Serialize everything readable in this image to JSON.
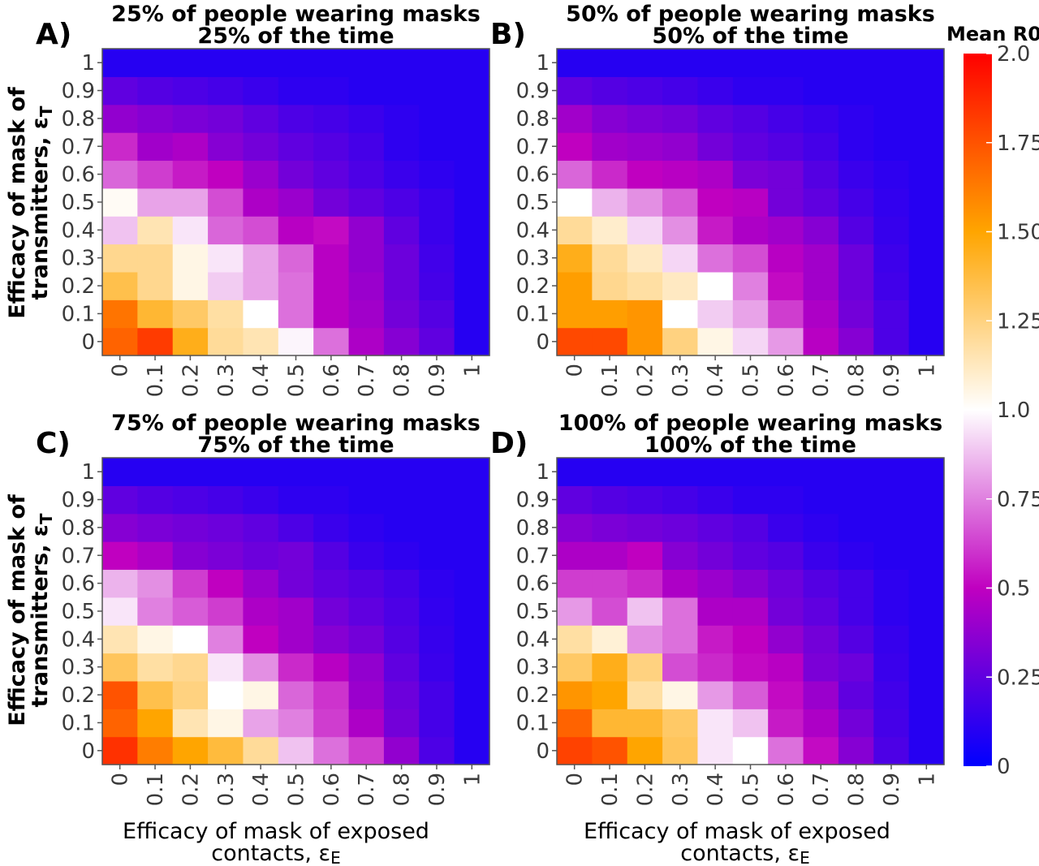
{
  "chart_data": {
    "type": "heatmap",
    "x_ticks": [
      "0",
      "0.1",
      "0.2",
      "0.3",
      "0.4",
      "0.5",
      "0.6",
      "0.7",
      "0.8",
      "0.9",
      "1"
    ],
    "y_ticks": [
      "0",
      "0.1",
      "0.2",
      "0.3",
      "0.4",
      "0.5",
      "0.6",
      "0.7",
      "0.8",
      "0.9",
      "1"
    ],
    "xlabel_line1": "Efficacy of mask of exposed",
    "xlabel_line2": "contacts, ε",
    "xlabel_sub": "E",
    "ylabel_line1": "Efficacy of mask of",
    "ylabel_line2": "transmitters, ε",
    "ylabel_sub": "T",
    "colorbar": {
      "title": "Mean R0",
      "min": 0,
      "max": 2.0,
      "ticks": [
        "0",
        "0.25",
        "0.5",
        "0.75",
        "1.0",
        "1.25",
        "1.50",
        "1.75",
        "2.0"
      ],
      "tick_values": [
        0,
        0.25,
        0.5,
        0.75,
        1.0,
        1.25,
        1.5,
        1.75,
        2.0
      ],
      "colors": [
        "#0000ff",
        "#c000c0",
        "#ffffff",
        "#ffa500",
        "#ff0000"
      ]
    },
    "panels": [
      {
        "letter": "A)",
        "title_line1": "25% of people wearing masks",
        "title_line2": "25% of the time",
        "rows_note": "values[i][j]: i = y index (0 = epsilon_T 0), j = x index",
        "values": [
          [
            1.7,
            1.82,
            1.45,
            1.2,
            1.15,
            0.98,
            0.72,
            0.45,
            0.35,
            0.25,
            0.1
          ],
          [
            1.65,
            1.4,
            1.3,
            1.18,
            1.0,
            0.72,
            0.48,
            0.42,
            0.3,
            0.22,
            0.1
          ],
          [
            1.35,
            1.22,
            1.05,
            0.9,
            0.82,
            0.72,
            0.48,
            0.4,
            0.28,
            0.18,
            0.1
          ],
          [
            1.22,
            1.22,
            1.05,
            0.95,
            0.82,
            0.7,
            0.48,
            0.38,
            0.28,
            0.17,
            0.1
          ],
          [
            0.88,
            1.15,
            0.95,
            0.7,
            0.65,
            0.48,
            0.52,
            0.38,
            0.25,
            0.15,
            0.1
          ],
          [
            1.02,
            0.82,
            0.82,
            0.65,
            0.45,
            0.4,
            0.3,
            0.25,
            0.2,
            0.15,
            0.1
          ],
          [
            0.7,
            0.62,
            0.55,
            0.5,
            0.4,
            0.3,
            0.25,
            0.2,
            0.15,
            0.12,
            0.1
          ],
          [
            0.58,
            0.42,
            0.45,
            0.35,
            0.3,
            0.25,
            0.22,
            0.18,
            0.12,
            0.1,
            0.1
          ],
          [
            0.38,
            0.35,
            0.32,
            0.3,
            0.25,
            0.2,
            0.18,
            0.15,
            0.12,
            0.1,
            0.1
          ],
          [
            0.25,
            0.22,
            0.2,
            0.18,
            0.15,
            0.12,
            0.12,
            0.1,
            0.1,
            0.1,
            0.1
          ],
          [
            0.1,
            0.1,
            0.1,
            0.1,
            0.1,
            0.1,
            0.1,
            0.1,
            0.1,
            0.1,
            0.1
          ]
        ]
      },
      {
        "letter": "B)",
        "title_line1": "50% of people wearing masks",
        "title_line2": "50% of the time",
        "values": [
          [
            1.78,
            1.78,
            1.55,
            1.25,
            1.05,
            0.92,
            0.8,
            0.48,
            0.35,
            0.2,
            0.1
          ],
          [
            1.52,
            1.52,
            1.55,
            1.0,
            0.9,
            0.82,
            0.62,
            0.45,
            0.3,
            0.2,
            0.1
          ],
          [
            1.52,
            1.22,
            1.18,
            1.12,
            1.0,
            0.75,
            0.52,
            0.42,
            0.28,
            0.17,
            0.1
          ],
          [
            1.45,
            1.2,
            1.12,
            0.92,
            0.72,
            0.65,
            0.48,
            0.42,
            0.28,
            0.16,
            0.1
          ],
          [
            1.2,
            1.1,
            0.92,
            0.78,
            0.55,
            0.45,
            0.42,
            0.35,
            0.22,
            0.14,
            0.1
          ],
          [
            1.0,
            0.85,
            0.78,
            0.68,
            0.5,
            0.48,
            0.3,
            0.25,
            0.18,
            0.13,
            0.1
          ],
          [
            0.7,
            0.58,
            0.5,
            0.48,
            0.45,
            0.32,
            0.3,
            0.22,
            0.15,
            0.12,
            0.1
          ],
          [
            0.5,
            0.42,
            0.4,
            0.38,
            0.3,
            0.25,
            0.22,
            0.18,
            0.12,
            0.1,
            0.1
          ],
          [
            0.42,
            0.35,
            0.32,
            0.3,
            0.25,
            0.22,
            0.18,
            0.15,
            0.12,
            0.1,
            0.1
          ],
          [
            0.25,
            0.22,
            0.2,
            0.18,
            0.15,
            0.12,
            0.12,
            0.1,
            0.1,
            0.1,
            0.1
          ],
          [
            0.1,
            0.1,
            0.1,
            0.1,
            0.1,
            0.1,
            0.1,
            0.1,
            0.1,
            0.1,
            0.1
          ]
        ]
      },
      {
        "letter": "C)",
        "title_line1": "75% of people wearing masks",
        "title_line2": "75% of the time",
        "values": [
          [
            1.85,
            1.62,
            1.5,
            1.38,
            1.2,
            0.88,
            0.72,
            0.62,
            0.38,
            0.2,
            0.1
          ],
          [
            1.7,
            1.5,
            1.15,
            1.05,
            0.82,
            0.75,
            0.62,
            0.45,
            0.3,
            0.18,
            0.1
          ],
          [
            1.75,
            1.35,
            1.25,
            1.0,
            1.05,
            0.7,
            0.6,
            0.4,
            0.28,
            0.18,
            0.1
          ],
          [
            1.32,
            1.18,
            1.22,
            0.95,
            0.78,
            0.58,
            0.48,
            0.38,
            0.25,
            0.15,
            0.1
          ],
          [
            1.15,
            1.05,
            1.0,
            0.75,
            0.5,
            0.42,
            0.35,
            0.3,
            0.22,
            0.14,
            0.1
          ],
          [
            0.95,
            0.75,
            0.68,
            0.62,
            0.45,
            0.42,
            0.3,
            0.25,
            0.2,
            0.13,
            0.1
          ],
          [
            0.85,
            0.78,
            0.62,
            0.5,
            0.4,
            0.3,
            0.25,
            0.22,
            0.18,
            0.12,
            0.1
          ],
          [
            0.5,
            0.45,
            0.35,
            0.32,
            0.28,
            0.3,
            0.22,
            0.15,
            0.12,
            0.1,
            0.1
          ],
          [
            0.35,
            0.32,
            0.3,
            0.28,
            0.25,
            0.2,
            0.15,
            0.12,
            0.1,
            0.1,
            0.1
          ],
          [
            0.25,
            0.22,
            0.2,
            0.18,
            0.15,
            0.12,
            0.12,
            0.1,
            0.1,
            0.1,
            0.1
          ],
          [
            0.1,
            0.1,
            0.1,
            0.1,
            0.1,
            0.1,
            0.1,
            0.1,
            0.1,
            0.1,
            0.1
          ]
        ]
      },
      {
        "letter": "D)",
        "title_line1": "100% of people wearing masks",
        "title_line2": "100% of the time",
        "values": [
          [
            1.8,
            1.75,
            1.5,
            1.32,
            0.95,
            1.0,
            0.72,
            0.52,
            0.35,
            0.2,
            0.1
          ],
          [
            1.7,
            1.4,
            1.4,
            1.3,
            0.95,
            0.88,
            0.55,
            0.45,
            0.3,
            0.18,
            0.1
          ],
          [
            1.55,
            1.5,
            1.18,
            1.05,
            0.8,
            0.68,
            0.52,
            0.4,
            0.25,
            0.17,
            0.1
          ],
          [
            1.3,
            1.45,
            1.25,
            0.65,
            0.58,
            0.52,
            0.48,
            0.32,
            0.28,
            0.15,
            0.1
          ],
          [
            1.18,
            1.08,
            0.78,
            0.72,
            0.55,
            0.5,
            0.38,
            0.3,
            0.22,
            0.14,
            0.1
          ],
          [
            0.8,
            0.65,
            0.88,
            0.72,
            0.45,
            0.45,
            0.3,
            0.25,
            0.18,
            0.12,
            0.1
          ],
          [
            0.62,
            0.62,
            0.58,
            0.45,
            0.4,
            0.35,
            0.28,
            0.22,
            0.18,
            0.12,
            0.1
          ],
          [
            0.45,
            0.45,
            0.5,
            0.35,
            0.3,
            0.25,
            0.22,
            0.15,
            0.12,
            0.1,
            0.1
          ],
          [
            0.35,
            0.32,
            0.3,
            0.28,
            0.25,
            0.22,
            0.15,
            0.12,
            0.1,
            0.1,
            0.1
          ],
          [
            0.25,
            0.22,
            0.2,
            0.18,
            0.15,
            0.12,
            0.12,
            0.1,
            0.1,
            0.1,
            0.1
          ],
          [
            0.1,
            0.1,
            0.1,
            0.1,
            0.1,
            0.1,
            0.1,
            0.1,
            0.1,
            0.1,
            0.1
          ]
        ]
      }
    ]
  }
}
